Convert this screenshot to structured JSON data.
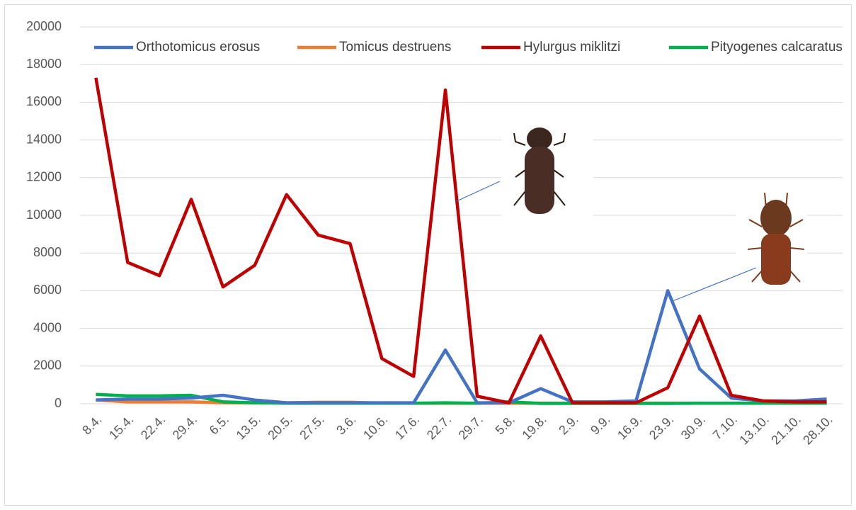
{
  "chart_data": {
    "type": "line",
    "categories": [
      "8.4.",
      "15.4.",
      "22.4.",
      "29.4.",
      "6.5.",
      "13.5.",
      "20.5.",
      "27.5.",
      "3.6.",
      "10.6.",
      "17.6.",
      "22.7.",
      "29.7.",
      "5.8.",
      "19.8.",
      "2.9.",
      "9.9.",
      "16.9.",
      "23.9.",
      "30.9.",
      "7.10.",
      "13.10.",
      "21.10.",
      "28.10."
    ],
    "series": [
      {
        "name": "Orthotomicus erosus",
        "color": "#4472c4",
        "values": [
          200,
          250,
          250,
          300,
          450,
          200,
          50,
          50,
          50,
          50,
          50,
          2850,
          50,
          50,
          800,
          100,
          100,
          150,
          6000,
          1850,
          300,
          150,
          150,
          250
        ]
      },
      {
        "name": "Tomicus destruens",
        "color": "#ed7d31",
        "values": [
          200,
          100,
          100,
          100,
          50,
          50,
          50,
          80,
          80,
          30,
          30,
          30,
          30,
          30,
          30,
          30,
          30,
          30,
          30,
          30,
          30,
          30,
          30,
          30
        ]
      },
      {
        "name": "Hylurgus miklitzi",
        "color": "#c00000",
        "values": [
          17300,
          7500,
          6800,
          10850,
          6200,
          7350,
          11100,
          8950,
          8500,
          2400,
          1450,
          16650,
          400,
          50,
          3600,
          50,
          50,
          50,
          850,
          4650,
          450,
          150,
          100,
          100
        ]
      },
      {
        "name": "Pityogenes calcaratus",
        "color": "#00b050",
        "values": [
          500,
          420,
          420,
          450,
          100,
          50,
          30,
          30,
          30,
          30,
          30,
          50,
          30,
          100,
          20,
          20,
          20,
          20,
          20,
          30,
          30,
          30,
          30,
          30
        ]
      }
    ],
    "ylim": [
      0,
      20000
    ],
    "yticks": [
      0,
      2000,
      4000,
      6000,
      8000,
      10000,
      12000,
      14000,
      16000,
      18000,
      20000
    ],
    "grid": true,
    "legend": "top"
  }
}
